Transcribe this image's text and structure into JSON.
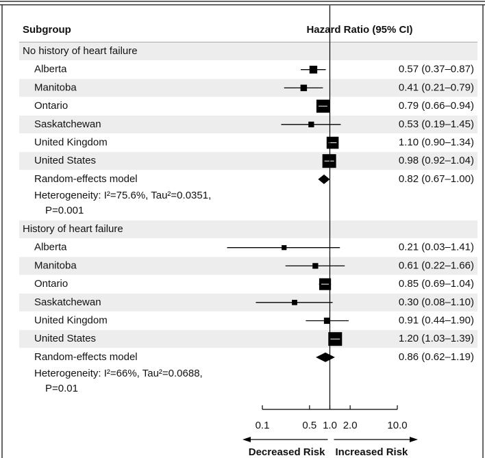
{
  "chart_data": {
    "type": "forest",
    "header": {
      "subgroup": "Subgroup",
      "effect": "Hazard Ratio (95% CI)"
    },
    "groups": [
      {
        "name": "No history of heart failure",
        "categories": [
          "Alberta",
          "Manitoba",
          "Ontario",
          "Saskatchewan",
          "United Kingdom",
          "United States"
        ],
        "values": [
          0.57,
          0.41,
          0.79,
          0.53,
          1.1,
          0.98
        ],
        "lower": [
          0.37,
          0.21,
          0.66,
          0.19,
          0.9,
          0.92
        ],
        "upper": [
          0.87,
          0.79,
          0.94,
          1.45,
          1.34,
          1.04
        ],
        "value_labels": [
          "0.57 (0.37–0.87)",
          "0.41 (0.21–0.79)",
          "0.79 (0.66–0.94)",
          "0.53 (0.19–1.45)",
          "1.10 (0.90–1.34)",
          "0.98 (0.92–1.04)"
        ],
        "pooled": {
          "label": "Random-effects model",
          "value": 0.82,
          "lower": 0.67,
          "upper": 1.0,
          "value_label": "0.82 (0.67–1.00)",
          "heterogeneity": "Heterogeneity: I²=75.6%, Tau²=0.0351,",
          "p": "P=0.001"
        }
      },
      {
        "name": "History of heart failure",
        "categories": [
          "Alberta",
          "Manitoba",
          "Ontario",
          "Saskatchewan",
          "United Kingdom",
          "United States"
        ],
        "values": [
          0.21,
          0.61,
          0.85,
          0.3,
          0.91,
          1.2
        ],
        "lower": [
          0.03,
          0.22,
          0.69,
          0.08,
          0.44,
          1.03
        ],
        "upper": [
          1.41,
          1.66,
          1.04,
          1.1,
          1.9,
          1.39
        ],
        "value_labels": [
          "0.21 (0.03–1.41)",
          "0.61 (0.22–1.66)",
          "0.85 (0.69–1.04)",
          "0.30 (0.08–1.10)",
          "0.91 (0.44–1.90)",
          "1.20 (1.03–1.39)"
        ],
        "pooled": {
          "label": "Random-effects model",
          "value": 0.86,
          "lower": 0.62,
          "upper": 1.19,
          "value_label": "0.86 (0.62–1.19)",
          "heterogeneity": "Heterogeneity: I²=66%, Tau²=0.0688,",
          "p": "P=0.01"
        }
      }
    ],
    "xscale": "log",
    "xlim": [
      0.1,
      10
    ],
    "xticks": [
      0.1,
      0.5,
      {
        "value": 1,
        "label": "1.0"
      },
      {
        "value": 2,
        "label": "2.0"
      },
      {
        "value": 10,
        "label": "10.0"
      }
    ],
    "reference": 1,
    "left_label": "Decreased Risk",
    "right_label": "Increased Risk",
    "color": "#000000",
    "shade": "#ededed"
  }
}
